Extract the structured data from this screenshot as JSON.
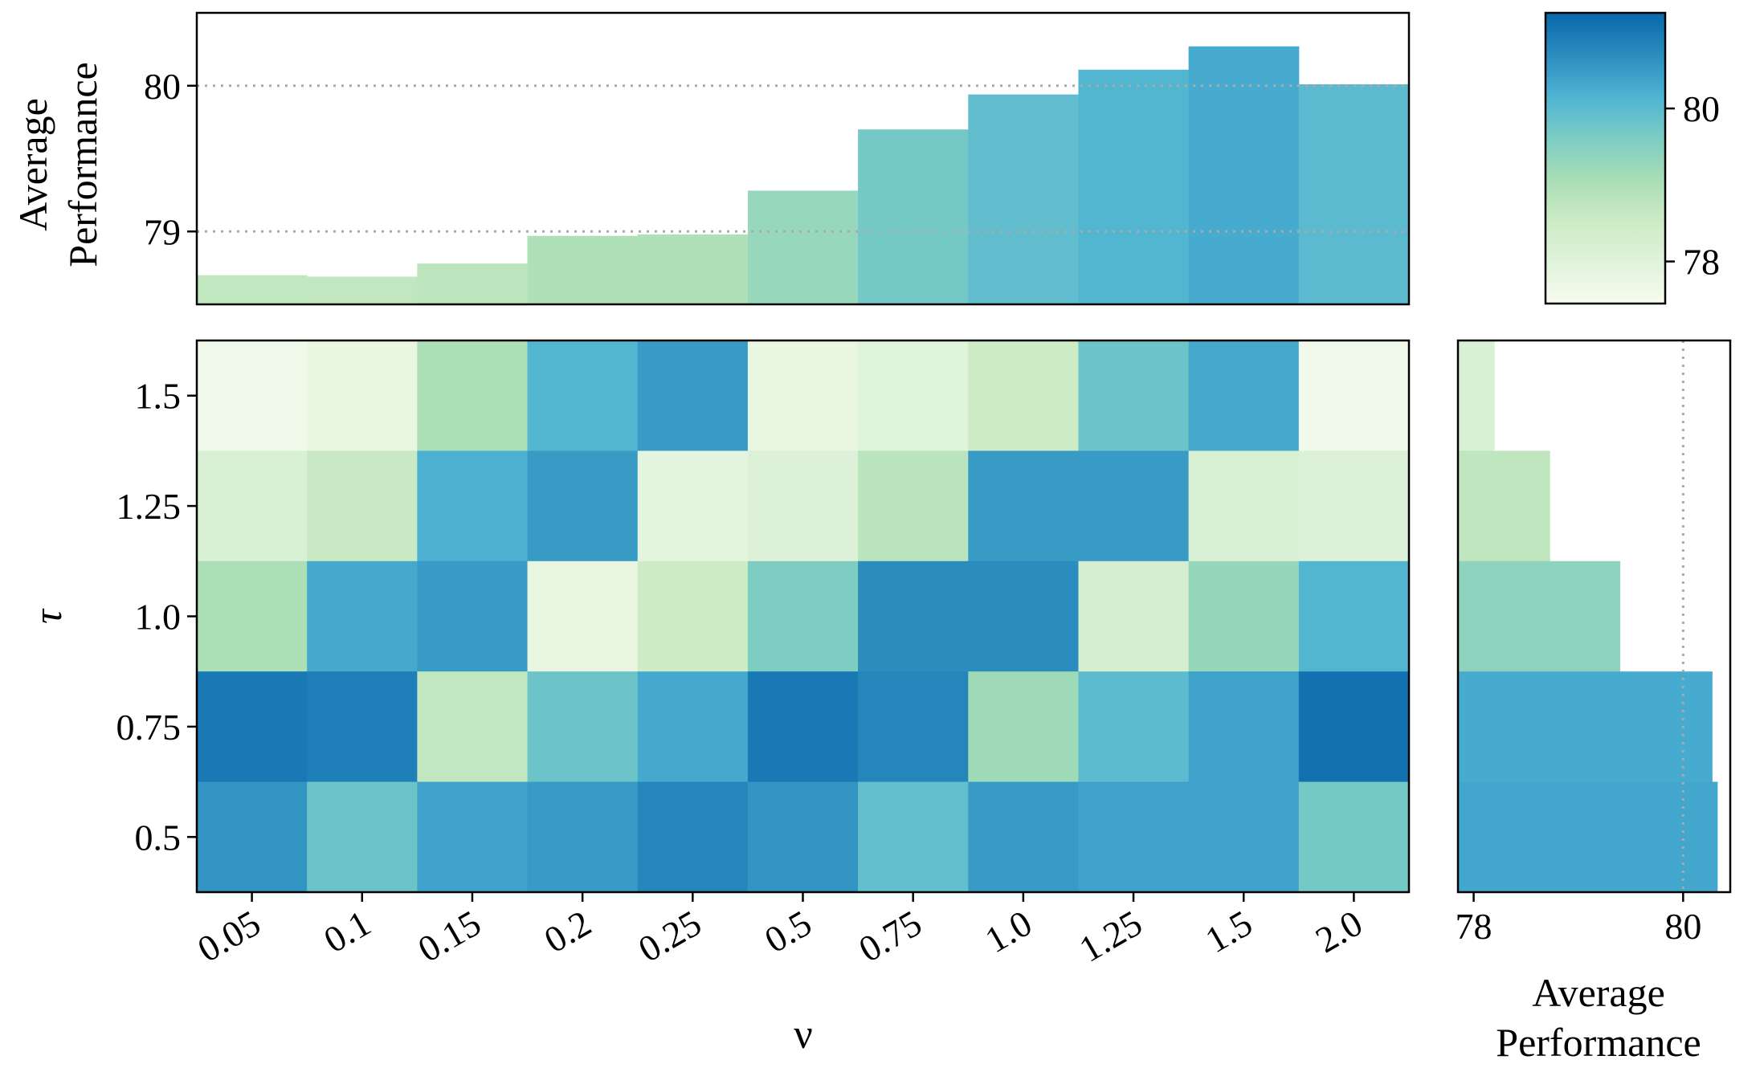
{
  "chart_data": [
    {
      "type": "bar",
      "role": "top-marginal",
      "ylabel": [
        "Average",
        "Performance"
      ],
      "categories": [
        "0.05",
        "0.1",
        "0.15",
        "0.2",
        "0.25",
        "0.5",
        "0.75",
        "1.0",
        "1.25",
        "1.5",
        "2.0"
      ],
      "values": [
        78.7,
        78.69,
        78.78,
        78.97,
        78.98,
        79.28,
        79.7,
        79.94,
        80.11,
        80.27,
        80.01
      ],
      "ylim": [
        78.5,
        80.5
      ],
      "yticks": [
        "79",
        "80"
      ],
      "ytick_values": [
        79,
        80
      ],
      "reference_lines": [
        79,
        80
      ],
      "grid": false
    },
    {
      "type": "heatmap",
      "role": "main",
      "xlabel": "ν",
      "ylabel": "τ",
      "x_categories": [
        "0.05",
        "0.1",
        "0.15",
        "0.2",
        "0.25",
        "0.5",
        "0.75",
        "1.0",
        "1.25",
        "1.5",
        "2.0"
      ],
      "y_categories": [
        "1.5",
        "1.25",
        "1.0",
        "0.75",
        "0.5"
      ],
      "values": [
        [
          77.6,
          77.8,
          79.0,
          80.1,
          80.5,
          77.8,
          78.0,
          78.5,
          79.8,
          80.3,
          77.6
        ],
        [
          78.2,
          78.6,
          80.2,
          80.5,
          77.9,
          78.1,
          78.8,
          80.5,
          80.5,
          78.2,
          78.1
        ],
        [
          79.0,
          80.3,
          80.5,
          77.8,
          78.5,
          79.6,
          80.7,
          80.7,
          78.3,
          79.3,
          80.1
        ],
        [
          81.0,
          80.9,
          78.7,
          79.8,
          80.3,
          81.0,
          80.8,
          79.2,
          80.0,
          80.4,
          81.1
        ],
        [
          80.6,
          79.8,
          80.4,
          80.5,
          80.8,
          80.6,
          79.9,
          80.5,
          80.4,
          80.4,
          79.7
        ]
      ],
      "grid": false
    },
    {
      "type": "bar",
      "role": "right-marginal",
      "orientation": "horizontal",
      "xlabel": [
        "Average",
        "Performance"
      ],
      "categories": [
        "1.5",
        "1.25",
        "1.0",
        "0.75",
        "0.5"
      ],
      "values": [
        78.2,
        78.73,
        79.4,
        80.28,
        80.33
      ],
      "xlim": [
        77.85,
        80.45
      ],
      "xticks": [
        "78",
        "80"
      ],
      "xtick_values": [
        78,
        80
      ],
      "reference_lines": [
        80
      ]
    },
    {
      "type": "colorbar",
      "range": [
        77.45,
        81.25
      ],
      "ticks": [
        "78",
        "80"
      ],
      "tick_values": [
        78,
        80
      ],
      "colormap": "GnBu",
      "colormap_stops": [
        "#f7fcf0",
        "#e0f3db",
        "#ccebc5",
        "#a8ddb5",
        "#7bccc4",
        "#4eb3d3",
        "#2b8cbe",
        "#0868ac"
      ]
    }
  ]
}
